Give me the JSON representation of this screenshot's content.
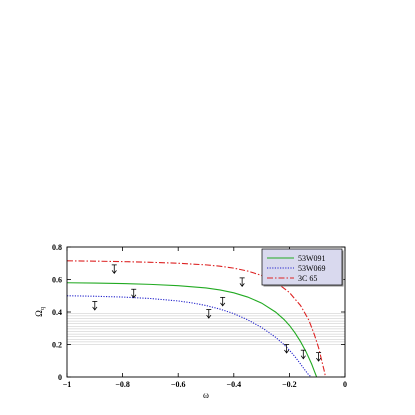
{
  "chart_data": {
    "type": "line",
    "xlabel": "ω",
    "ylabel": "Ω",
    "ylabel_sub": "q",
    "xlim": [
      -1,
      0
    ],
    "ylim": [
      0,
      0.8
    ],
    "xticks": [
      -1,
      -0.8,
      -0.6,
      -0.4,
      -0.2,
      0
    ],
    "xtick_labels": [
      "−1",
      "−0.8",
      "−0.6",
      "−0.4",
      "−0.2",
      "0"
    ],
    "yticks": [
      0,
      0.2,
      0.4,
      0.6,
      0.8
    ],
    "ytick_labels": [
      "0",
      "0.2",
      "0.4",
      "0.6",
      "0.8"
    ],
    "shaded_band": [
      0.2,
      0.4
    ],
    "legend_position": "top-right",
    "series": [
      {
        "name": "53W091",
        "color": "#22aa22",
        "dash": "solid",
        "x": [
          -1.0,
          -0.9,
          -0.8,
          -0.7,
          -0.6,
          -0.5,
          -0.45,
          -0.4,
          -0.35,
          -0.3,
          -0.25,
          -0.22,
          -0.2,
          -0.18,
          -0.16,
          -0.14,
          -0.12,
          -0.11,
          -0.102
        ],
        "y": [
          0.58,
          0.578,
          0.575,
          0.57,
          0.562,
          0.548,
          0.536,
          0.518,
          0.492,
          0.455,
          0.4,
          0.355,
          0.318,
          0.272,
          0.218,
          0.155,
          0.08,
          0.035,
          0.0
        ]
      },
      {
        "name": "53W069",
        "color": "#2222cc",
        "dash": "dotted",
        "x": [
          -1.0,
          -0.9,
          -0.8,
          -0.7,
          -0.6,
          -0.55,
          -0.5,
          -0.45,
          -0.4,
          -0.35,
          -0.3,
          -0.25,
          -0.22,
          -0.2,
          -0.18,
          -0.16,
          -0.145,
          -0.13,
          -0.12
        ],
        "y": [
          0.5,
          0.497,
          0.492,
          0.483,
          0.468,
          0.456,
          0.44,
          0.418,
          0.39,
          0.352,
          0.305,
          0.245,
          0.2,
          0.165,
          0.125,
          0.08,
          0.045,
          0.012,
          0.0
        ]
      },
      {
        "name": "3C 65",
        "color": "#dd2222",
        "dash": "dashdot",
        "x": [
          -1.0,
          -0.9,
          -0.8,
          -0.7,
          -0.6,
          -0.5,
          -0.45,
          -0.4,
          -0.35,
          -0.3,
          -0.25,
          -0.2,
          -0.16,
          -0.13,
          -0.11,
          -0.095,
          -0.085,
          -0.075,
          -0.07
        ],
        "y": [
          0.715,
          0.713,
          0.71,
          0.706,
          0.7,
          0.69,
          0.682,
          0.67,
          0.652,
          0.625,
          0.585,
          0.52,
          0.44,
          0.35,
          0.26,
          0.18,
          0.11,
          0.04,
          0.0
        ]
      }
    ],
    "upper_limit_arrows": [
      {
        "x": -0.83,
        "y": 0.69
      },
      {
        "x": -0.37,
        "y": 0.61
      },
      {
        "x": -0.76,
        "y": 0.54
      },
      {
        "x": -0.9,
        "y": 0.465
      },
      {
        "x": -0.44,
        "y": 0.49
      },
      {
        "x": -0.49,
        "y": 0.415
      },
      {
        "x": -0.21,
        "y": 0.2
      },
      {
        "x": -0.15,
        "y": 0.165
      },
      {
        "x": -0.095,
        "y": 0.15
      }
    ]
  }
}
